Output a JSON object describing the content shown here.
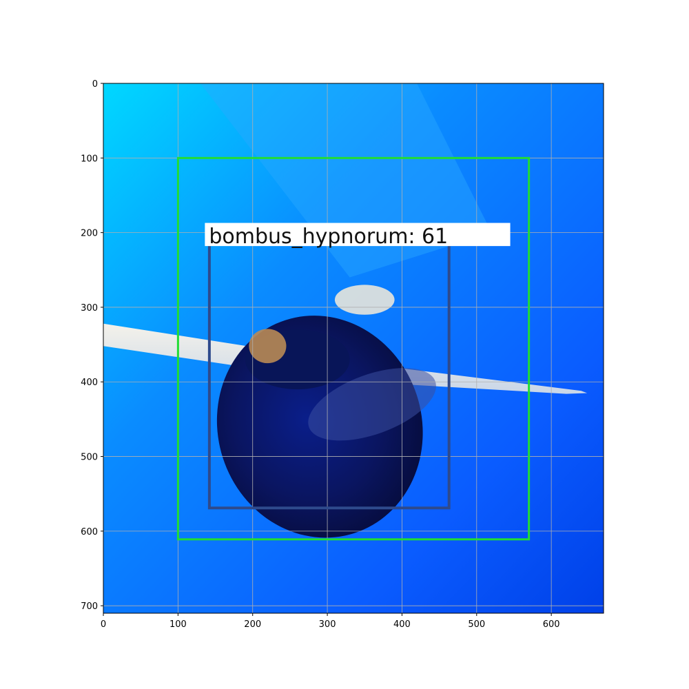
{
  "chart_data": {
    "type": "image",
    "image_extent": {
      "width": 670,
      "height": 710
    },
    "xlim": [
      0,
      670
    ],
    "ylim": [
      710,
      0
    ],
    "xticks": [
      0,
      100,
      200,
      300,
      400,
      500,
      600
    ],
    "yticks": [
      0,
      100,
      200,
      300,
      400,
      500,
      600,
      700
    ],
    "grid": true,
    "colors": {
      "image_top_left": "#00d2ff",
      "image_mid": "#0a7cff",
      "image_bottom": "#0046ee",
      "grid": "#b0b0b0",
      "outer_box": "#22dd33",
      "inner_box": "#2e4a8c",
      "label_background": "#ffffff",
      "label_text": "#111111"
    },
    "detections": [
      {
        "kind": "outer",
        "x0": 100,
        "y0": 100,
        "x1": 570,
        "y1": 611,
        "color": "#22dd33",
        "label": ""
      },
      {
        "kind": "inner",
        "x0": 142,
        "y0": 218,
        "x1": 463,
        "y1": 569,
        "color": "#2e4a8c",
        "label": "bombus_hypnorum: 61"
      }
    ],
    "label_box": {
      "x0": 136,
      "y0": 187,
      "x1": 545,
      "y1": 218
    }
  }
}
